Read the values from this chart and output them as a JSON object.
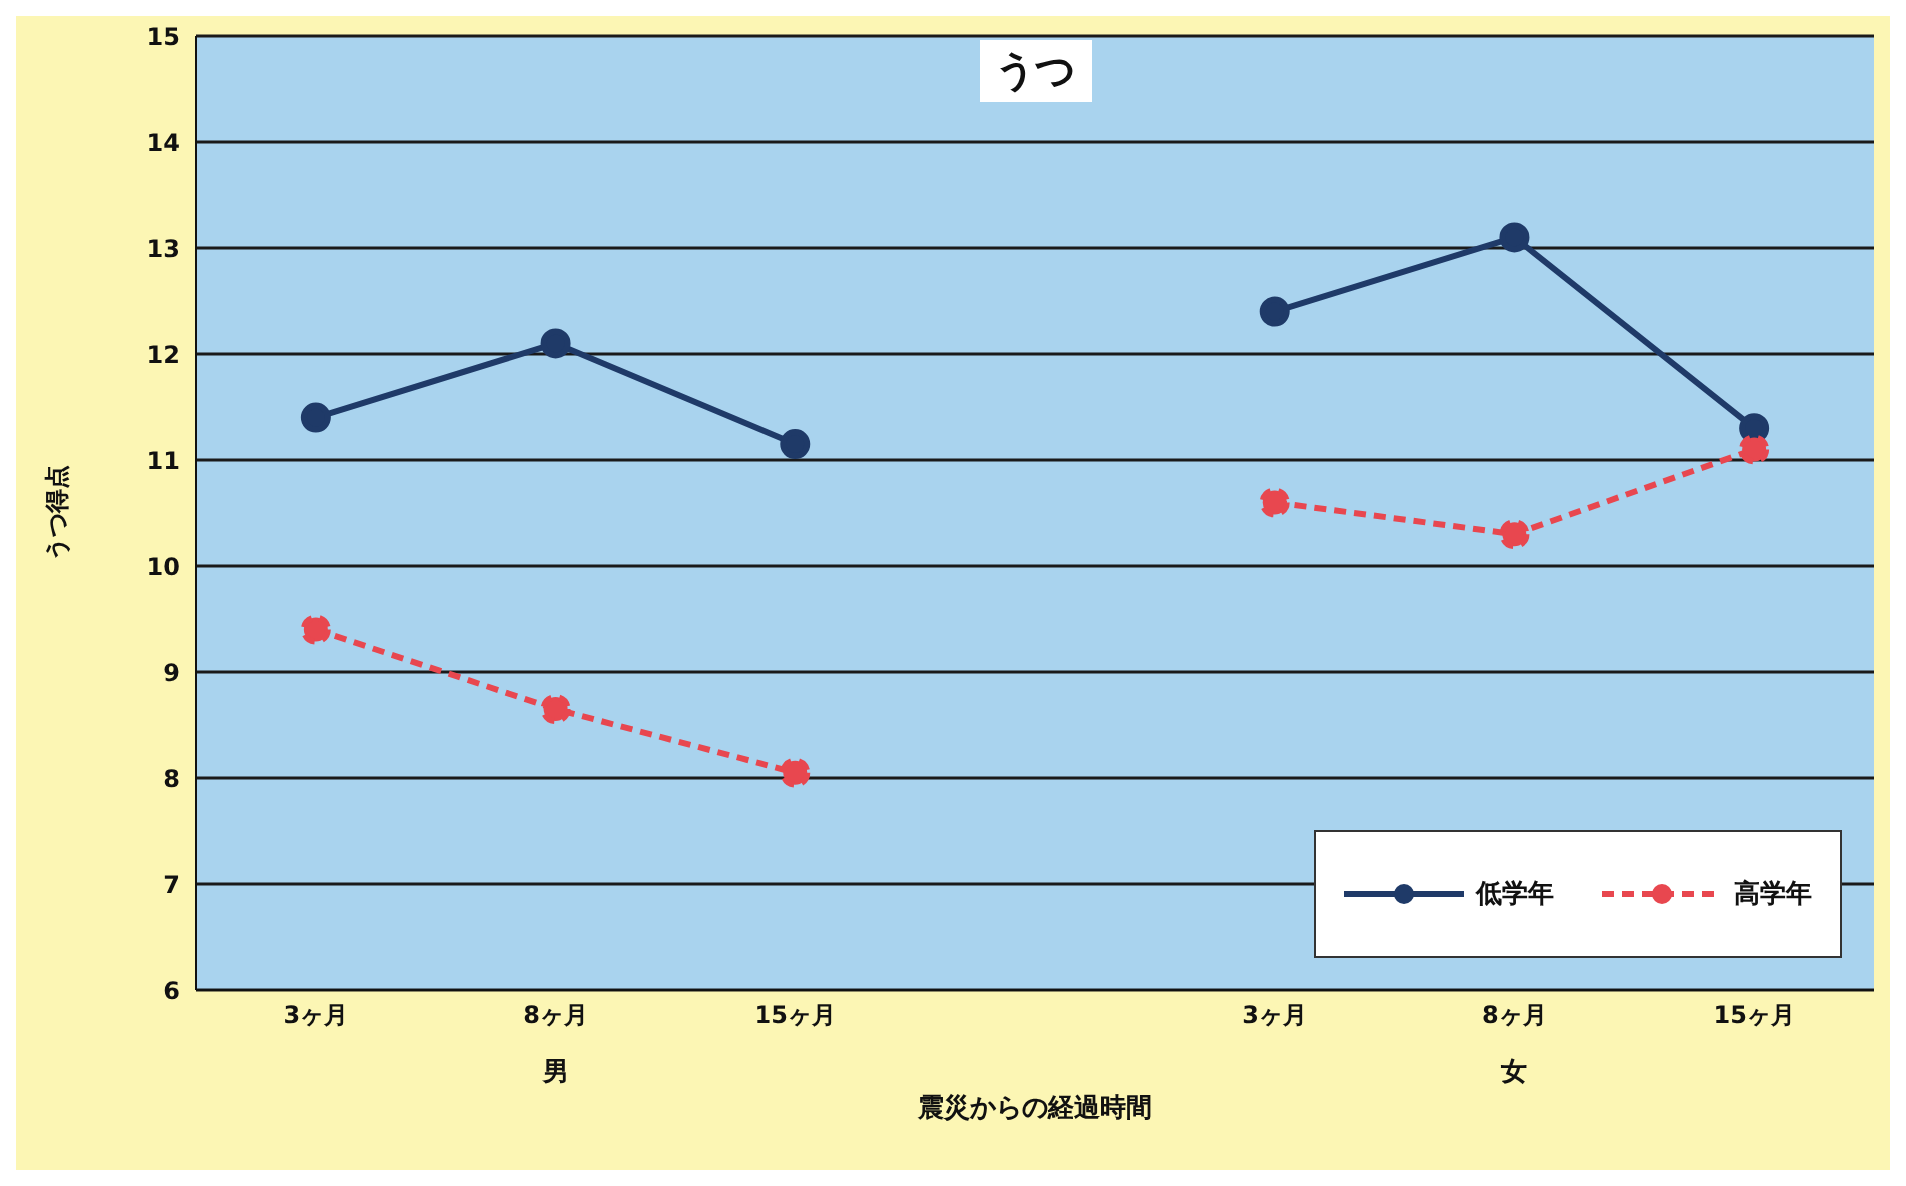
{
  "chart_data": {
    "type": "line",
    "title": "うつ",
    "xlabel": "震災からの経過時間",
    "ylabel": "うつ得点",
    "categories": [
      "3ヶ月",
      "8ヶ月",
      "15ヶ月",
      null,
      "3ヶ月",
      "8ヶ月",
      "15ヶ月"
    ],
    "series": [
      {
        "name": "低学年",
        "color": "#1f3a68",
        "values": [
          11.4,
          12.1,
          11.15,
          null,
          12.4,
          13.1,
          11.3
        ]
      },
      {
        "name": "高学年",
        "color": "#e8474f",
        "line_style": "dashed",
        "values": [
          9.4,
          8.65,
          8.05,
          null,
          10.6,
          10.3,
          11.1
        ]
      }
    ],
    "annotations": [
      "男",
      "女"
    ],
    "ylim": [
      6,
      15
    ],
    "yticks": [
      6,
      7,
      8,
      9,
      10,
      11,
      12,
      13,
      14,
      15
    ],
    "grid": "y",
    "legend": "bottom right",
    "marker": "circle"
  }
}
